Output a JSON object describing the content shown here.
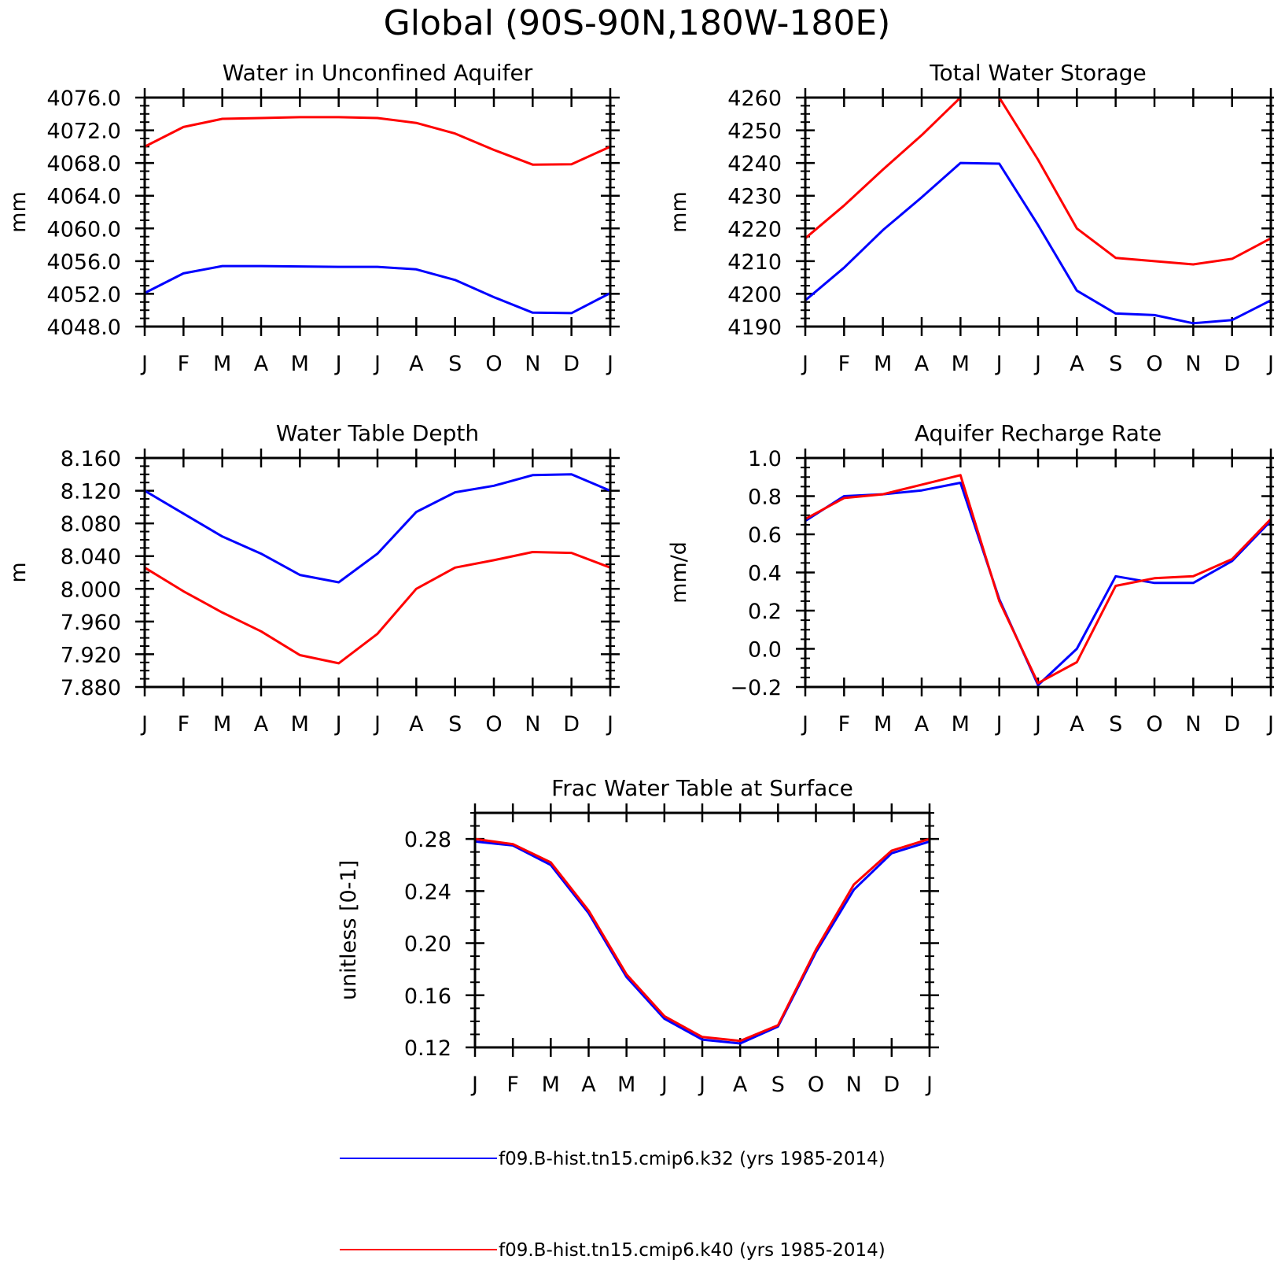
{
  "title": "Global (90S-90N,180W-180E)",
  "colors": {
    "k32": "#0000ff",
    "k40": "#ff0000"
  },
  "legend": {
    "placement": "bottom",
    "entries": [
      {
        "label": "f09.B-hist.tn15.cmip6.k32 (yrs 1985-2014)",
        "color": "#0000ff"
      },
      {
        "label": "f09.B-hist.tn15.cmip6.k40 (yrs 1985-2014)",
        "color": "#ff0000"
      }
    ]
  },
  "chart_data": [
    {
      "type": "line",
      "title": "Water in Unconfined Aquifer",
      "ylabel": "mm",
      "xlabel": "",
      "categories": [
        "J",
        "F",
        "M",
        "A",
        "M",
        "J",
        "J",
        "A",
        "S",
        "O",
        "N",
        "D",
        "J"
      ],
      "ylim": [
        4048.0,
        4076.0
      ],
      "yticks": [
        "4048.0",
        "4052.0",
        "4056.0",
        "4060.0",
        "4064.0",
        "4068.0",
        "4072.0",
        "4076.0"
      ],
      "grid": false,
      "series": [
        {
          "color": "#0000ff",
          "values": [
            4052.1,
            4054.5,
            4055.4,
            4055.4,
            4055.35,
            4055.3,
            4055.3,
            4055.0,
            4053.7,
            4051.6,
            4049.7,
            4049.65,
            4052.1
          ]
        },
        {
          "color": "#ff0000",
          "values": [
            4070.0,
            4072.4,
            4073.4,
            4073.5,
            4073.6,
            4073.6,
            4073.5,
            4072.9,
            4071.6,
            4069.6,
            4067.8,
            4067.85,
            4070.0
          ]
        }
      ]
    },
    {
      "type": "line",
      "title": "Total Water Storage",
      "ylabel": "mm",
      "xlabel": "",
      "categories": [
        "J",
        "F",
        "M",
        "A",
        "M",
        "J",
        "J",
        "A",
        "S",
        "O",
        "N",
        "D",
        "J"
      ],
      "ylim": [
        4190,
        4260
      ],
      "yticks": [
        "4190",
        "4200",
        "4210",
        "4220",
        "4230",
        "4240",
        "4250",
        "4260"
      ],
      "grid": false,
      "series": [
        {
          "color": "#0000ff",
          "values": [
            4198,
            4208,
            4219.5,
            4229.5,
            4240,
            4239.8,
            4221,
            4201,
            4194,
            4193.5,
            4191,
            4192,
            4198
          ]
        },
        {
          "color": "#ff0000",
          "values": [
            4217,
            4227,
            4238,
            4248.5,
            4260,
            4260,
            4241,
            4220,
            4211,
            4210,
            4209,
            4210.7,
            4217
          ]
        }
      ]
    },
    {
      "type": "line",
      "title": "Water Table Depth",
      "ylabel": "m",
      "xlabel": "",
      "categories": [
        "J",
        "F",
        "M",
        "A",
        "M",
        "J",
        "J",
        "A",
        "S",
        "O",
        "N",
        "D",
        "J"
      ],
      "ylim": [
        7.88,
        8.16
      ],
      "yticks": [
        "7.880",
        "7.920",
        "7.960",
        "8.000",
        "8.040",
        "8.080",
        "8.120",
        "8.160"
      ],
      "grid": false,
      "series": [
        {
          "color": "#0000ff",
          "values": [
            8.12,
            8.092,
            8.064,
            8.043,
            8.017,
            8.008,
            8.043,
            8.094,
            8.118,
            8.126,
            8.139,
            8.14,
            8.12
          ]
        },
        {
          "color": "#ff0000",
          "values": [
            8.026,
            7.997,
            7.971,
            7.948,
            7.919,
            7.909,
            7.945,
            8.0,
            8.026,
            8.035,
            8.045,
            8.044,
            8.026
          ]
        }
      ]
    },
    {
      "type": "line",
      "title": "Aquifer Recharge Rate",
      "ylabel": "mm/d",
      "xlabel": "",
      "categories": [
        "J",
        "F",
        "M",
        "A",
        "M",
        "J",
        "J",
        "A",
        "S",
        "O",
        "N",
        "D",
        "J"
      ],
      "ylim": [
        -0.2,
        1.0
      ],
      "yticks": [
        "-0.2",
        "0.0",
        "0.2",
        "0.4",
        "0.6",
        "0.8",
        "1.0"
      ],
      "grid": false,
      "series": [
        {
          "color": "#0000ff",
          "values": [
            0.67,
            0.8,
            0.81,
            0.83,
            0.87,
            0.26,
            -0.19,
            0.0,
            0.38,
            0.345,
            0.345,
            0.46,
            0.67
          ]
        },
        {
          "color": "#ff0000",
          "values": [
            0.68,
            0.79,
            0.81,
            0.86,
            0.91,
            0.25,
            -0.18,
            -0.07,
            0.33,
            0.37,
            0.38,
            0.47,
            0.68
          ]
        }
      ]
    },
    {
      "type": "line",
      "title": "Frac Water Table at Surface",
      "ylabel": "unitless [0-1]",
      "xlabel": "",
      "categories": [
        "J",
        "F",
        "M",
        "A",
        "M",
        "J",
        "J",
        "A",
        "S",
        "O",
        "N",
        "D",
        "J"
      ],
      "ylim": [
        0.12,
        0.3
      ],
      "yticks": [
        "0.12",
        "0.16",
        "0.20",
        "0.24",
        "0.28"
      ],
      "grid": false,
      "series": [
        {
          "color": "#0000ff",
          "values": [
            0.278,
            0.275,
            0.26,
            0.223,
            0.174,
            0.142,
            0.126,
            0.123,
            0.136,
            0.193,
            0.241,
            0.269,
            0.278
          ]
        },
        {
          "color": "#ff0000",
          "values": [
            0.28,
            0.276,
            0.262,
            0.225,
            0.176,
            0.144,
            0.128,
            0.125,
            0.137,
            0.195,
            0.245,
            0.271,
            0.28
          ]
        }
      ]
    }
  ]
}
